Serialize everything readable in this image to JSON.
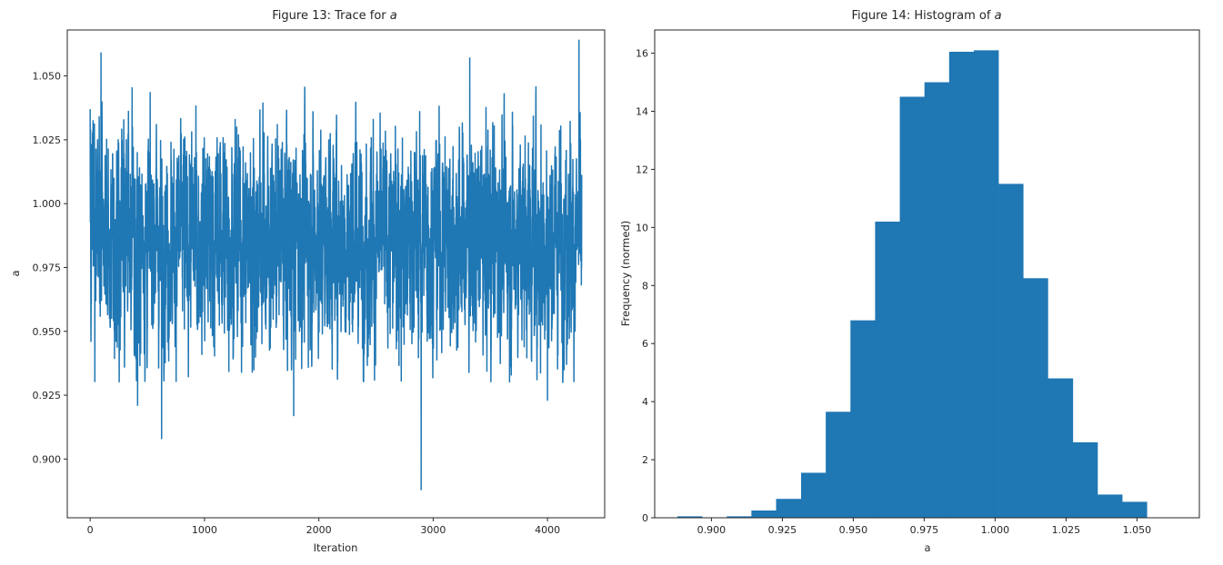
{
  "chart_data": [
    {
      "type": "line",
      "title": "Figure 13: Trace for ",
      "title_var": "a",
      "xlabel": "Iteration",
      "ylabel": "a",
      "xlim": [
        -200,
        4500
      ],
      "ylim": [
        0.877,
        1.068
      ],
      "xticks": [
        0,
        1000,
        2000,
        3000,
        4000
      ],
      "yticks": [
        0.9,
        0.925,
        0.95,
        0.975,
        1.0,
        1.025,
        1.05
      ],
      "grid": false,
      "color": "#1f77b4",
      "series": [
        {
          "n_points": 4300,
          "mean": 0.9865,
          "sd": 0.022,
          "notable_points": [
            {
              "x": 0,
              "y": 1.037
            },
            {
              "x": 95,
              "y": 1.059
            },
            {
              "x": 415,
              "y": 0.921
            },
            {
              "x": 625,
              "y": 0.908
            },
            {
              "x": 1780,
              "y": 0.917
            },
            {
              "x": 2895,
              "y": 0.888
            },
            {
              "x": 3320,
              "y": 1.057
            },
            {
              "x": 4000,
              "y": 0.923
            },
            {
              "x": 4275,
              "y": 1.064
            }
          ]
        }
      ]
    },
    {
      "type": "bar",
      "title": "Figure 14: Histogram of ",
      "title_var": "a",
      "xlabel": "a",
      "ylabel": "Frequency (normed)",
      "xlim": [
        0.88,
        1.072
      ],
      "ylim": [
        0,
        16.8
      ],
      "xticks": [
        0.9,
        0.925,
        0.95,
        0.975,
        1.0,
        1.025,
        1.05
      ],
      "yticks": [
        0,
        2,
        4,
        6,
        8,
        10,
        12,
        14,
        16
      ],
      "grid": false,
      "color": "#1f77b4",
      "bin_edges": [
        0.888,
        0.8967,
        0.9054,
        0.9141,
        0.9228,
        0.9316,
        0.9403,
        0.949,
        0.9577,
        0.9664,
        0.9751,
        0.9838,
        0.9925,
        1.0012,
        1.0099,
        1.0186,
        1.0274,
        1.0361,
        1.0448,
        1.0535,
        1.0622
      ],
      "values": [
        0.05,
        0.0,
        0.05,
        0.25,
        0.65,
        1.55,
        3.65,
        6.8,
        10.2,
        14.5,
        15.0,
        16.05,
        16.1,
        11.5,
        8.25,
        4.8,
        2.6,
        0.8,
        0.55,
        0.0
      ]
    }
  ]
}
